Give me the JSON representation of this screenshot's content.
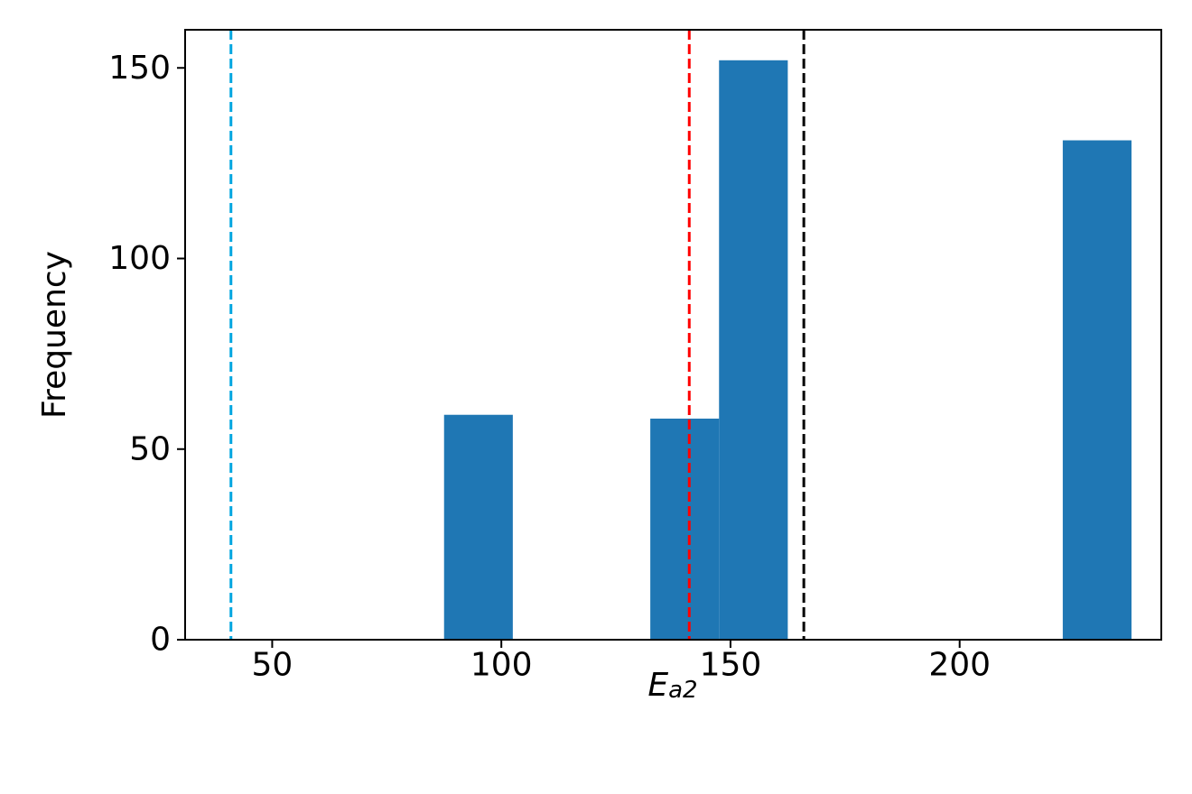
{
  "chart_data": {
    "type": "bar",
    "subtype": "histogram",
    "xlabel_main": "E",
    "xlabel_sub": "a2",
    "ylabel": "Frequency",
    "xlim": [
      31,
      244
    ],
    "ylim": [
      0,
      160
    ],
    "xticks": [
      50,
      100,
      150,
      200
    ],
    "yticks": [
      0,
      50,
      100,
      150
    ],
    "bar_color": "#1f77b4",
    "bins": [
      {
        "x0": 87.5,
        "x1": 102.5,
        "count": 59
      },
      {
        "x0": 132.5,
        "x1": 147.5,
        "count": 58
      },
      {
        "x0": 147.5,
        "x1": 162.5,
        "count": 152
      },
      {
        "x0": 222.5,
        "x1": 237.5,
        "count": 131
      }
    ],
    "reference_lines": [
      {
        "x": 41,
        "color": "#00a6e0",
        "style": "dashed"
      },
      {
        "x": 141,
        "color": "#ff0000",
        "style": "dashed"
      },
      {
        "x": 166,
        "color": "#000000",
        "style": "dashed"
      }
    ],
    "grid": false,
    "legend": "none"
  }
}
